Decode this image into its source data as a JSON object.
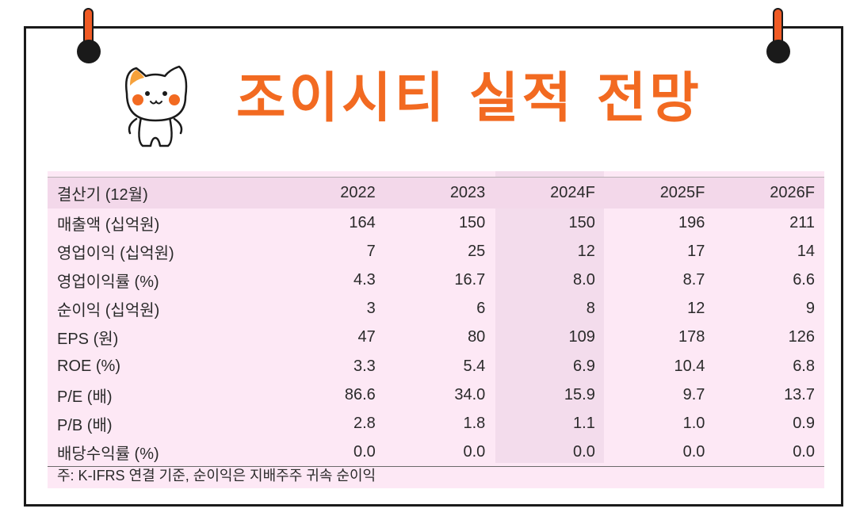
{
  "title": "조이시티 실적 전망",
  "table": {
    "header": [
      "결산기 (12월)",
      "2022",
      "2023",
      "2024F",
      "2025F",
      "2026F"
    ],
    "rows": [
      [
        "매출액 (십억원)",
        "164",
        "150",
        "150",
        "196",
        "211"
      ],
      [
        "영업이익 (십억원)",
        "7",
        "25",
        "12",
        "17",
        "14"
      ],
      [
        "영업이익률 (%)",
        "4.3",
        "16.7",
        "8.0",
        "8.7",
        "6.6"
      ],
      [
        "순이익 (십억원)",
        "3",
        "6",
        "8",
        "12",
        "9"
      ],
      [
        "EPS (원)",
        "47",
        "80",
        "109",
        "178",
        "126"
      ],
      [
        "ROE (%)",
        "3.3",
        "5.4",
        "6.9",
        "10.4",
        "6.8"
      ],
      [
        "P/E (배)",
        "86.6",
        "34.0",
        "15.9",
        "9.7",
        "13.7"
      ],
      [
        "P/B (배)",
        "2.8",
        "1.8",
        "1.1",
        "1.0",
        "0.9"
      ],
      [
        "배당수익률 (%)",
        "0.0",
        "0.0",
        "0.0",
        "0.0",
        "0.0"
      ]
    ]
  },
  "note": "주: K-IFRS 연결 기준, 순이익은 지배주주 귀속 순이익",
  "colors": {
    "accent": "#f26a21",
    "table_bg": "#fde8f5",
    "header_bg": "#f3d8ea"
  },
  "icons": [
    "pushpin-icon",
    "cat-mascot-icon"
  ]
}
